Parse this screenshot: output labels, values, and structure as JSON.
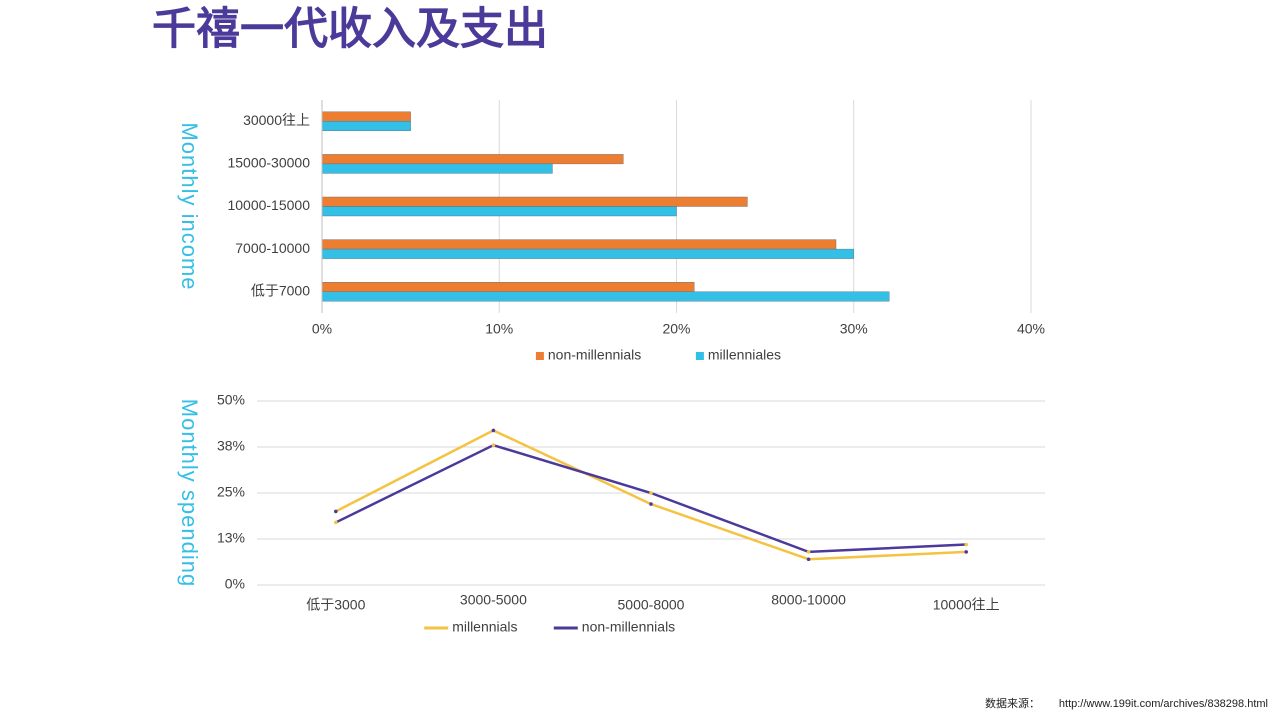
{
  "title": "千禧一代收入及支出",
  "source_label": "数据来源：",
  "source_url": "http://www.199it.com/archives/838298.html",
  "chart_data": [
    {
      "type": "hbar",
      "y_label": "Monthly income",
      "categories": [
        "30000往上",
        "15000-30000",
        "10000-15000",
        "7000-10000",
        "低于7000"
      ],
      "series": [
        {
          "name": "non-millennials",
          "color": "#ed7d31",
          "values": [
            5,
            17,
            24,
            29,
            21
          ]
        },
        {
          "name": "millenniales",
          "color": "#33bfe6",
          "values": [
            5,
            13,
            20,
            30,
            32
          ]
        }
      ],
      "xlim": [
        0,
        40
      ],
      "xticks": [
        {
          "value": 0,
          "label": "0%"
        },
        {
          "value": 10,
          "label": "10%"
        },
        {
          "value": 20,
          "label": "20%"
        },
        {
          "value": 30,
          "label": "30%"
        },
        {
          "value": 40,
          "label": "40%"
        }
      ],
      "grid": true,
      "legend": "bottom"
    },
    {
      "type": "line",
      "y_label": "Monthly  spending",
      "categories": [
        "低于3000",
        "3000-5000",
        "5000-8000",
        "8000-10000",
        "10000往上"
      ],
      "series": [
        {
          "name": "millennials",
          "color": "#f5c342",
          "values": [
            20,
            42,
            22,
            7,
            9
          ]
        },
        {
          "name": "non-millennials",
          "color": "#4b3a9a",
          "values": [
            17,
            38,
            25,
            9,
            11
          ]
        }
      ],
      "ylim": [
        0,
        50
      ],
      "yticks": [
        {
          "value": 0,
          "label": "0%"
        },
        {
          "value": 12.5,
          "label": "13%"
        },
        {
          "value": 25,
          "label": "25%"
        },
        {
          "value": 37.5,
          "label": "38%"
        },
        {
          "value": 50,
          "label": "50%"
        }
      ],
      "grid": true,
      "legend": "bottom"
    }
  ]
}
